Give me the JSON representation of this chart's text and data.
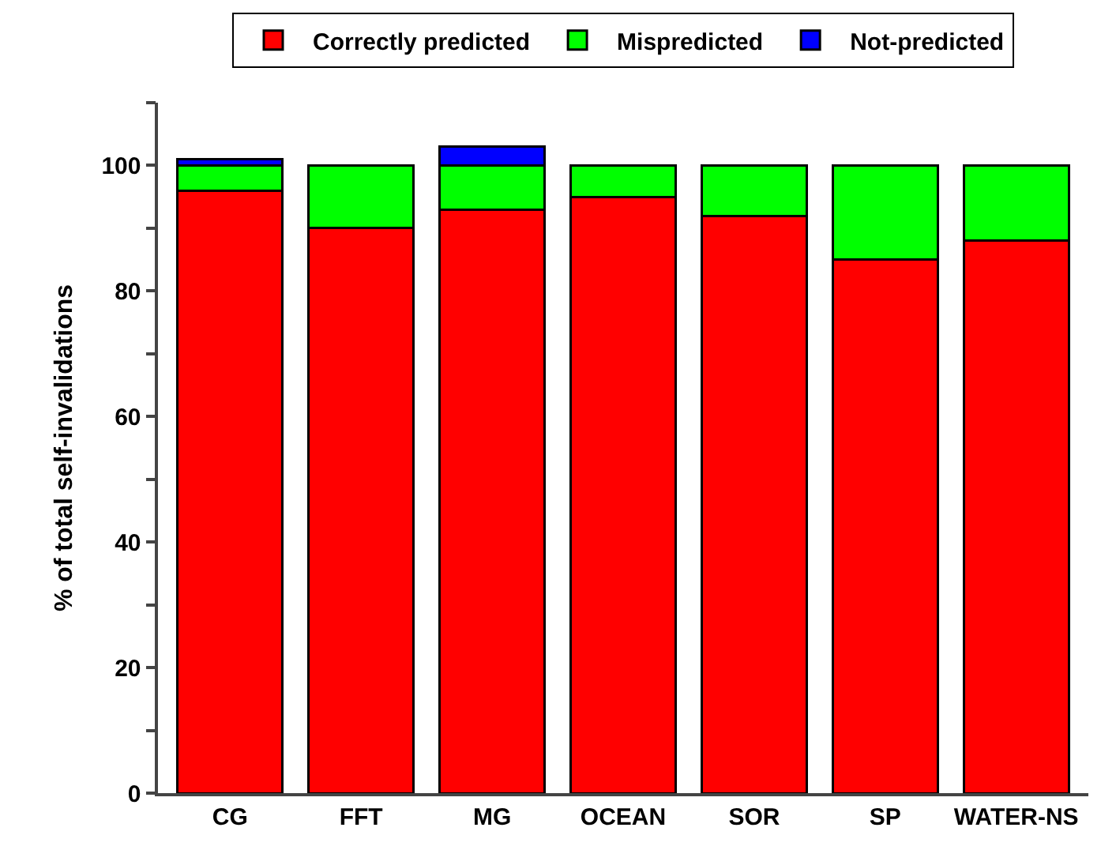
{
  "chart_data": {
    "type": "bar",
    "stacked": true,
    "ylabel": "% of total self-invalidations",
    "categories": [
      "CG",
      "FFT",
      "MG",
      "OCEAN",
      "SOR",
      "SP",
      "WATER-NS"
    ],
    "series": [
      {
        "name": "Correctly predicted",
        "color": "#ff0000",
        "values": [
          96,
          90,
          93,
          95,
          92,
          85,
          88
        ]
      },
      {
        "name": "Mispredicted",
        "color": "#00ff00",
        "values": [
          4,
          10,
          7,
          5,
          8,
          15,
          12
        ]
      },
      {
        "name": "Not-predicted",
        "color": "#0000ff",
        "values": [
          1,
          null,
          3,
          null,
          null,
          null,
          null
        ]
      }
    ],
    "ylim": [
      0,
      110
    ],
    "yticks": [
      0,
      {
        "value": 10,
        "label": null
      },
      20,
      {
        "value": 30,
        "label": null
      },
      40,
      {
        "value": 50,
        "label": null
      },
      60,
      {
        "value": 70,
        "label": null
      },
      80,
      {
        "value": 90,
        "label": null
      },
      100,
      {
        "value": 110,
        "label": null
      }
    ],
    "grid": false,
    "legend": "top"
  }
}
